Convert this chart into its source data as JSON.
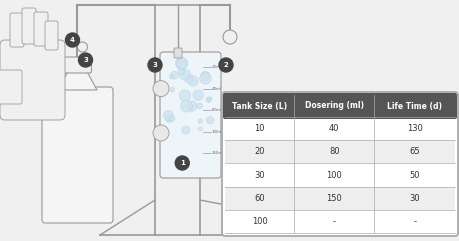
{
  "background_color": "#f0f0f0",
  "table_header": [
    "Tank Size (L)",
    "Dosering (ml)",
    "Life Time (d)"
  ],
  "table_rows": [
    [
      "10",
      "40",
      "130"
    ],
    [
      "20",
      "80",
      "65"
    ],
    [
      "30",
      "100",
      "50"
    ],
    [
      "60",
      "150",
      "30"
    ],
    [
      "100",
      "-",
      "-"
    ]
  ],
  "header_bg_color": "#555555",
  "header_text_color": "#ffffff",
  "row_bg_odd": "#ffffff",
  "row_bg_even": "#eeeeee",
  "table_text_color": "#333333",
  "border_color": "#aaaaaa",
  "line_color": "#999999",
  "lw": 0.8
}
